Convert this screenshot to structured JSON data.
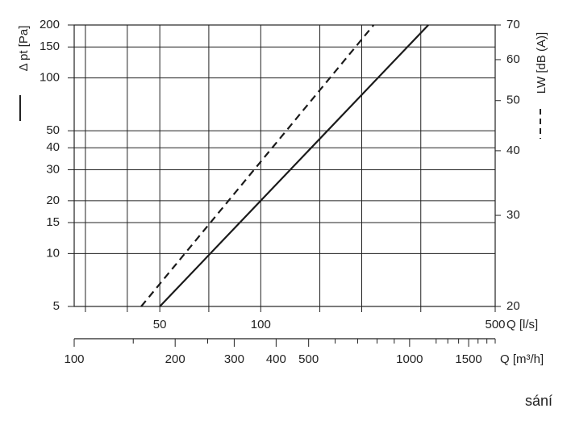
{
  "chart_data": {
    "type": "line",
    "ylabel": "Δ pt [Pa]",
    "y2label": "LW [dB (A)]",
    "xlabel": "Q [l/s]",
    "x2label": "Q [m³/h]",
    "note": "sání",
    "log": true,
    "grid": true,
    "xlim": [
      27.78,
      500
    ],
    "xticks": [
      50,
      100,
      500
    ],
    "xgrid": [
      30,
      40,
      50,
      70,
      100,
      150,
      200,
      300,
      500
    ],
    "ylim": [
      5,
      200
    ],
    "yticks": [
      5,
      10,
      15,
      20,
      30,
      40,
      50,
      100,
      150,
      200
    ],
    "y2lim": [
      20,
      70
    ],
    "y2ticks": [
      20,
      30,
      40,
      50,
      60,
      70
    ],
    "x2lim": [
      100,
      1800
    ],
    "x2ticks": [
      100,
      200,
      300,
      400,
      500,
      1000,
      1500
    ],
    "x2minor": [
      150,
      250,
      600,
      700,
      800,
      900,
      1200,
      1300,
      1400,
      1600,
      1700,
      1800
    ],
    "series": [
      {
        "color": "#1a1a1a",
        "dash": false,
        "x": [
          50,
          316
        ],
        "values": [
          5,
          200
        ]
      },
      {
        "color": "#1a1a1a",
        "dash": true,
        "axis": "y2",
        "x": [
          44,
          217
        ],
        "values": [
          20,
          70
        ]
      }
    ]
  }
}
